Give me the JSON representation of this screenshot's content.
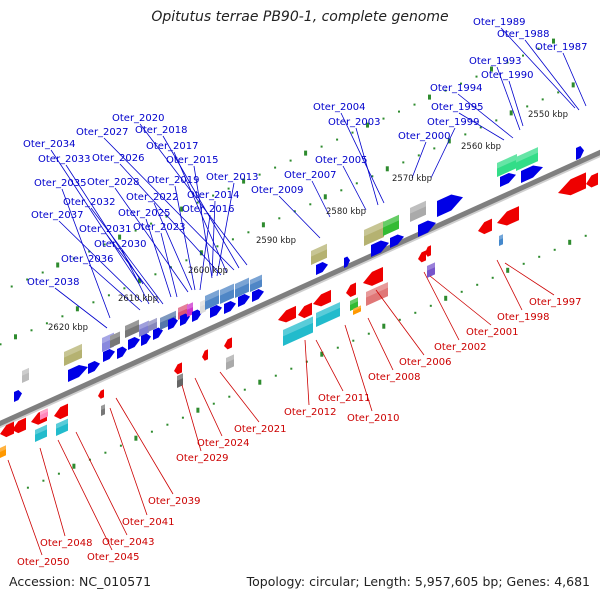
{
  "map": {
    "title": "Opitutus terrae PB90-1, complete genome",
    "accession": "Accession: NC_010571",
    "summary": "Topology: circular; Length: 5,957,605 bp; Genes: 4,681"
  },
  "colors": {
    "forward_label": "#0000cc",
    "reverse_label": "#cc0000",
    "backbone": "#7f7f7f",
    "tick": "#2e8b2e"
  },
  "scale_ticks": [
    {
      "label": "2620 kbp"
    },
    {
      "label": "2610 kbp"
    },
    {
      "label": "2600 kbp"
    },
    {
      "label": "2590 kbp"
    },
    {
      "label": "2580 kbp"
    },
    {
      "label": "2570 kbp"
    },
    {
      "label": "2560 kbp"
    },
    {
      "label": "2550 kbp"
    }
  ],
  "forward_labels": [
    "Oter_1989",
    "Oter_1988",
    "Oter_1987",
    "Oter_1993",
    "Oter_1990",
    "Oter_1994",
    "Oter_1995",
    "Oter_1999",
    "Oter_2000",
    "Oter_2004",
    "Oter_2003",
    "Oter_2005",
    "Oter_2007",
    "Oter_2009",
    "Oter_2020",
    "Oter_2027",
    "Oter_2018",
    "Oter_2034",
    "Oter_2026",
    "Oter_2017",
    "Oter_2033",
    "Oter_2015",
    "Oter_2035",
    "Oter_2028",
    "Oter_2019",
    "Oter_2013",
    "Oter_2014",
    "Oter_2032",
    "Oter_2022",
    "Oter_2016",
    "Oter_2037",
    "Oter_2025",
    "Oter_2031",
    "Oter_2023",
    "Oter_2030",
    "Oter_2036",
    "Oter_2038"
  ],
  "reverse_labels": [
    "Oter_1997",
    "Oter_1998",
    "Oter_2001",
    "Oter_2002",
    "Oter_2006",
    "Oter_2008",
    "Oter_2011",
    "Oter_2010",
    "Oter_2012",
    "Oter_2021",
    "Oter_2024",
    "Oter_2029",
    "Oter_2039",
    "Oter_2041",
    "Oter_2043",
    "Oter_2048",
    "Oter_2045",
    "Oter_2050"
  ]
}
